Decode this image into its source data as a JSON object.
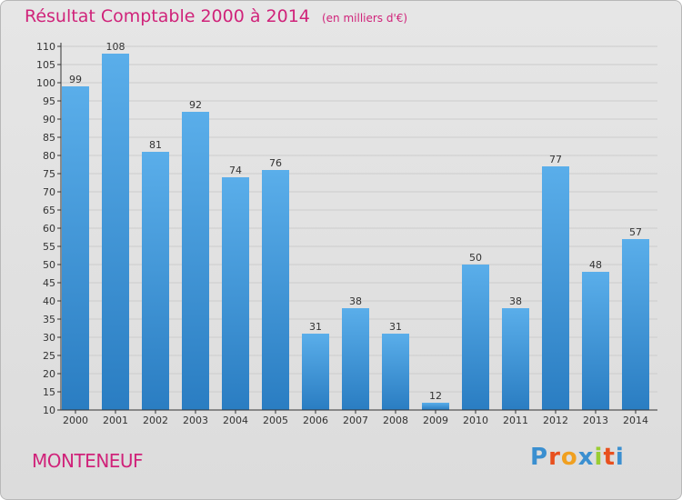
{
  "title": "Résultat Comptable 2000 à 2014",
  "unit_note": "(en milliers d'€)",
  "location": "MONTENEUF",
  "brand": {
    "text": "Proxiti",
    "letter_colors": [
      "#3a8fd0",
      "#e8501e",
      "#f0a020",
      "#3a8fd0",
      "#9acd32",
      "#e8501e",
      "#3a8fd0"
    ]
  },
  "colors": {
    "title": "#d0237a",
    "bar_light": "#5aaeea",
    "bar_dark": "#2a7dc2",
    "axis": "#333333",
    "grid": "#cccccc"
  },
  "chart_data": {
    "type": "bar",
    "categories": [
      "2000",
      "2001",
      "2002",
      "2003",
      "2004",
      "2005",
      "2006",
      "2007",
      "2008",
      "2009",
      "2010",
      "2011",
      "2012",
      "2013",
      "2014"
    ],
    "values": [
      99,
      108,
      81,
      92,
      74,
      76,
      31,
      38,
      31,
      12,
      50,
      38,
      77,
      48,
      57
    ],
    "ylim": [
      10,
      110
    ],
    "ytick_step": 5,
    "grid": true,
    "data_labels": true
  }
}
